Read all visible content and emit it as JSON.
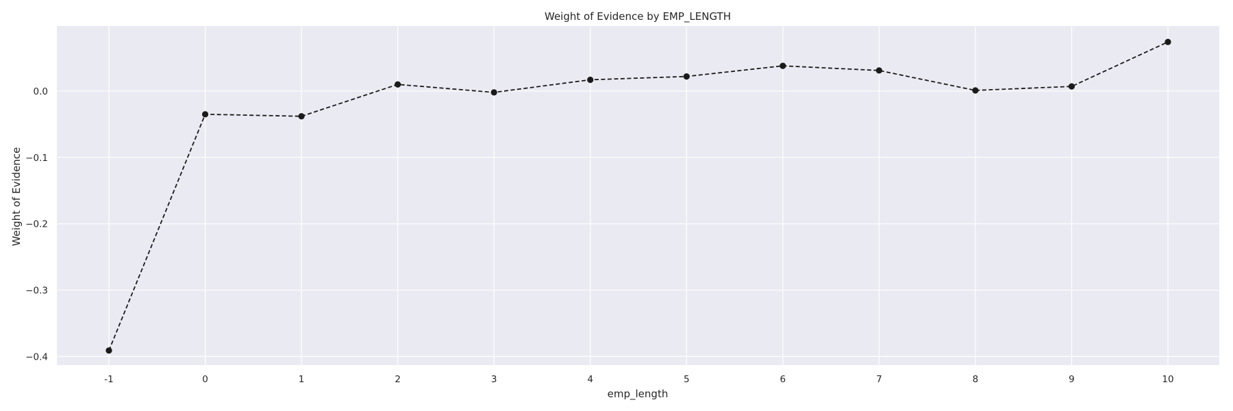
{
  "chart_data": {
    "type": "line",
    "title": "Weight of Evidence by EMP_LENGTH",
    "xlabel": "emp_length",
    "ylabel": "Weight of Evidence",
    "categories": [
      "-1",
      "0",
      "1",
      "2",
      "3",
      "4",
      "5",
      "6",
      "7",
      "8",
      "9",
      "10"
    ],
    "series": [
      {
        "values": [
          -0.391,
          -0.035,
          -0.038,
          0.01,
          -0.002,
          0.017,
          0.022,
          0.038,
          0.031,
          0.001,
          0.007,
          0.074
        ],
        "color": "#1a1a1a",
        "line_style": "dashed",
        "marker": "circle"
      }
    ],
    "ylim": [
      -0.413,
      0.098
    ],
    "yticks": [
      {
        "value": 0.0,
        "label": "0.0"
      },
      {
        "value": -0.1,
        "label": "−0.1"
      },
      {
        "value": -0.2,
        "label": "−0.2"
      },
      {
        "value": -0.3,
        "label": "−0.3"
      },
      {
        "value": -0.4,
        "label": "−0.4"
      }
    ],
    "grid": true,
    "legend": "none",
    "colors": {
      "background": "#eaeaf2",
      "grid": "#ffffff",
      "series": "#1a1a1a"
    }
  }
}
